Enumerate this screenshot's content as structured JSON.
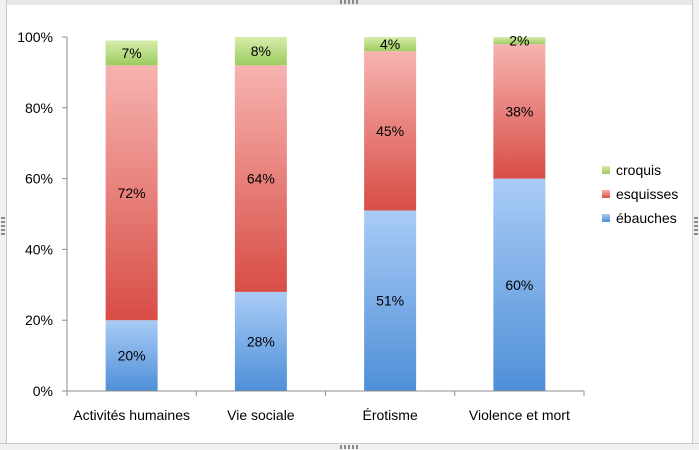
{
  "colors": {
    "ebauches": "#5b9bd5",
    "esquisses": "#e06666",
    "croquis": "#a9cf6c",
    "axis": "#8c8c8c",
    "text": "#000000"
  },
  "chart_data": {
    "type": "bar",
    "stacked": true,
    "percent": true,
    "title": "",
    "xlabel": "",
    "ylabel": "",
    "ylim": [
      0,
      100
    ],
    "yticks": [
      "0%",
      "20%",
      "40%",
      "60%",
      "80%",
      "100%"
    ],
    "categories": [
      "Activités humaines",
      "Vie sociale",
      "Érotisme",
      "Violence et mort"
    ],
    "series": [
      {
        "name": "ébauches",
        "values": [
          20,
          28,
          51,
          60
        ],
        "labels": [
          "20%",
          "28%",
          "51%",
          "60%"
        ]
      },
      {
        "name": "esquisses",
        "values": [
          72,
          64,
          45,
          38
        ],
        "labels": [
          "72%",
          "64%",
          "45%",
          "38%"
        ]
      },
      {
        "name": "croquis",
        "values": [
          7,
          8,
          4,
          2
        ],
        "labels": [
          "7%",
          "8%",
          "4%",
          "2%"
        ]
      }
    ],
    "legend": {
      "position": "right",
      "entries": [
        "croquis",
        "esquisses",
        "ébauches"
      ]
    },
    "grid": false
  }
}
